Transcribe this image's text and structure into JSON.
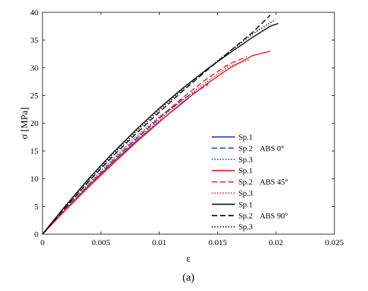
{
  "chart_data": {
    "type": "line",
    "xlabel": "ε",
    "ylabel": "σ [MPa]",
    "caption": "(a)",
    "xlim": [
      0,
      0.025
    ],
    "ylim": [
      0,
      40
    ],
    "xticks": [
      "0",
      "0.005",
      "0.01",
      "0.015",
      "0.02",
      "0.025"
    ],
    "yticks": [
      "0",
      "5",
      "10",
      "15",
      "20",
      "25",
      "30",
      "35",
      "40"
    ],
    "grid": false,
    "legend_position": "bottom-right",
    "legend_groups": [
      {
        "label": "ABS 0°",
        "color": "#1f3fe0"
      },
      {
        "label": "ABS 45°",
        "color": "#e8262b"
      },
      {
        "label": "ABS 90°",
        "color": "#111111"
      }
    ],
    "series": [
      {
        "name": "Sp.1",
        "group": 0,
        "color": "#1f3fe0",
        "dash": "solid",
        "x": [
          0,
          0.002,
          0.004,
          0.006,
          0.008,
          0.01,
          0.0125
        ],
        "y": [
          0,
          4.5,
          8.8,
          12.9,
          16.7,
          20.3,
          24.5
        ]
      },
      {
        "name": "Sp.2",
        "group": 0,
        "color": "#1f3fe0",
        "dash": "dashed",
        "x": [
          0,
          0.002,
          0.004,
          0.006,
          0.008,
          0.01,
          0.012,
          0.0142
        ],
        "y": [
          0,
          4.6,
          9.0,
          13.2,
          17.1,
          20.9,
          24.3,
          27.0
        ]
      },
      {
        "name": "Sp.3",
        "group": 0,
        "color": "#1f3fe0",
        "dash": "dotted",
        "x": [
          0,
          0.002,
          0.004,
          0.006,
          0.008,
          0.01,
          0.0115
        ],
        "y": [
          0,
          4.7,
          9.2,
          13.5,
          17.5,
          21.2,
          23.5
        ]
      },
      {
        "name": "Sp.1",
        "group": 1,
        "color": "#e8262b",
        "dash": "solid",
        "x": [
          0,
          0.002,
          0.004,
          0.006,
          0.008,
          0.01,
          0.012,
          0.014,
          0.016,
          0.018,
          0.0195
        ],
        "y": [
          0,
          4.4,
          8.6,
          12.6,
          16.5,
          20.2,
          23.8,
          27.0,
          29.9,
          32.2,
          33.0
        ]
      },
      {
        "name": "Sp.2",
        "group": 1,
        "color": "#e8262b",
        "dash": "dashed",
        "x": [
          0,
          0.002,
          0.004,
          0.006,
          0.008,
          0.01,
          0.012,
          0.014,
          0.016,
          0.0175
        ],
        "y": [
          0,
          4.6,
          9.0,
          13.2,
          17.2,
          21.0,
          24.6,
          27.9,
          30.7,
          32.0
        ]
      },
      {
        "name": "Sp.3",
        "group": 1,
        "color": "#e8262b",
        "dash": "dotted",
        "x": [
          0,
          0.002,
          0.004,
          0.006,
          0.008,
          0.01,
          0.012,
          0.014,
          0.016,
          0.0178
        ],
        "y": [
          0,
          4.5,
          8.8,
          12.9,
          16.9,
          20.6,
          24.2,
          27.4,
          30.3,
          31.5
        ]
      },
      {
        "name": "Sp.1",
        "group": 2,
        "color": "#111111",
        "dash": "solid",
        "x": [
          0,
          0.002,
          0.004,
          0.006,
          0.008,
          0.01,
          0.012,
          0.014,
          0.016,
          0.018,
          0.0195,
          0.0202
        ],
        "y": [
          0,
          5.2,
          10.1,
          14.6,
          18.8,
          22.7,
          26.3,
          29.6,
          32.6,
          35.5,
          37.5,
          38.0
        ]
      },
      {
        "name": "Sp.2",
        "group": 2,
        "color": "#111111",
        "dash": "dashed",
        "x": [
          0,
          0.002,
          0.004,
          0.006,
          0.008,
          0.01,
          0.012,
          0.014,
          0.016,
          0.018,
          0.0195
        ],
        "y": [
          0,
          4.9,
          9.6,
          14.0,
          18.1,
          22.0,
          25.8,
          29.4,
          32.9,
          36.4,
          39.5
        ]
      },
      {
        "name": "Sp.3",
        "group": 2,
        "color": "#111111",
        "dash": "dotted",
        "x": [
          0,
          0.002,
          0.004,
          0.006,
          0.008,
          0.01,
          0.012,
          0.014,
          0.016,
          0.018,
          0.0198
        ],
        "y": [
          0,
          5.0,
          9.8,
          14.3,
          18.5,
          22.4,
          26.1,
          29.6,
          32.9,
          36.1,
          38.5
        ]
      }
    ]
  }
}
